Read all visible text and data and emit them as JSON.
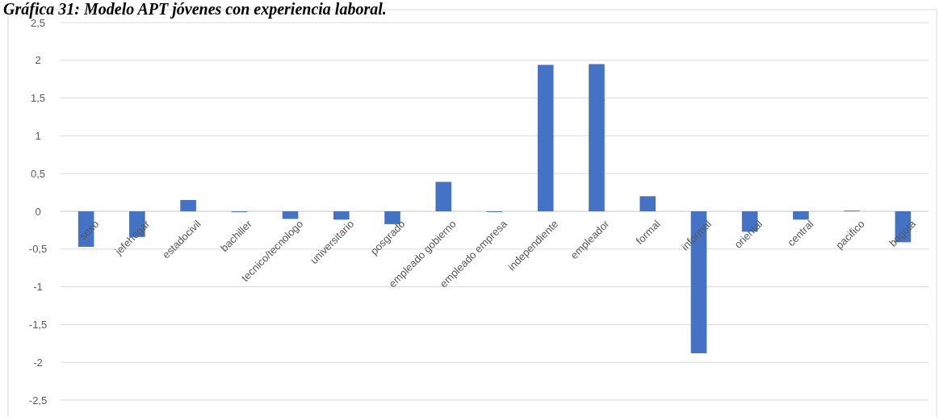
{
  "chart_data": {
    "type": "bar",
    "title": "Gráfica 31: Modelo APT jóvenes con experiencia laboral.",
    "categories": [
      "sexo",
      "jefehogar",
      "estadocivil",
      "bachiller",
      "tecnico/tecnologo",
      "universitario",
      "posgrado",
      "empleado gobierno",
      "empleado empresa",
      "independiente",
      "empleador",
      "formal",
      "informal",
      "oriental",
      "central",
      "pacifico",
      "bogota"
    ],
    "values": [
      -0.47,
      -0.34,
      0.15,
      -0.01,
      -0.1,
      -0.11,
      -0.17,
      0.39,
      -0.01,
      1.94,
      1.95,
      0.2,
      -1.88,
      -0.27,
      -0.11,
      0.01,
      -0.41
    ],
    "color": "#4472c4",
    "ylim": [
      -2.5,
      2.5
    ],
    "yticks": [
      {
        "value": -2.5,
        "label": "-2,5"
      },
      -2,
      {
        "value": -1.5,
        "label": "-1,5"
      },
      -1,
      {
        "value": -0.5,
        "label": "-0,5"
      },
      0,
      {
        "value": 0.5,
        "label": "0,5"
      },
      1,
      {
        "value": 1.5,
        "label": "1,5"
      },
      2,
      {
        "value": 2.5,
        "label": "2,5"
      }
    ],
    "grid": "y"
  }
}
